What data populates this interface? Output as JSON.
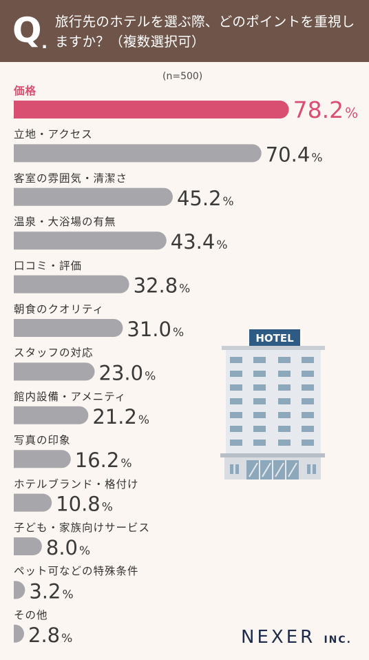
{
  "header": {
    "q_mark": "Q",
    "q_dot": ".",
    "question": "旅行先のホテルを選ぶ際、どのポイントを重視しますか？（複数選択可）"
  },
  "sample_note": "(n=500)",
  "chart_data": {
    "type": "bar",
    "orientation": "horizontal",
    "categories": [
      "価格",
      "立地・アクセス",
      "客室の雰囲気・清潔さ",
      "温泉・大浴場の有無",
      "口コミ・評価",
      "朝食のクオリティ",
      "スタッフの対応",
      "館内設備・アメニティ",
      "写真の印象",
      "ホテルブランド・格付け",
      "子ども・家族向けサービス",
      "ペット可などの特殊条件",
      "その他"
    ],
    "values": [
      78.2,
      70.4,
      45.2,
      43.4,
      32.8,
      31.0,
      23.0,
      21.2,
      16.2,
      10.8,
      8.0,
      3.2,
      2.8
    ],
    "value_labels": [
      "78.2",
      "70.4",
      "45.2",
      "43.4",
      "32.8",
      "31.0",
      "23.0",
      "21.2",
      "16.2",
      "10.8",
      "8.0",
      "3.2",
      "2.8"
    ],
    "unit": "%",
    "colors": {
      "highlight": "#d94f72",
      "bar": "#a7a7ab",
      "label": "#3a3a3a"
    }
  },
  "illustration": {
    "sign": "HOTEL",
    "icon": "hotel-building-icon"
  },
  "logo": {
    "brand": "NEXER",
    "suffix": "INC."
  }
}
